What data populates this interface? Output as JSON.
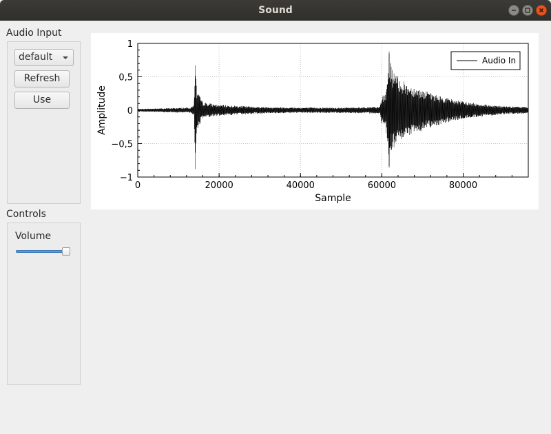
{
  "window": {
    "title": "Sound"
  },
  "audio_input": {
    "group_title": "Audio Input",
    "device_selected": "default",
    "refresh_label": "Refresh",
    "use_label": "Use"
  },
  "controls": {
    "group_title": "Controls",
    "volume_label": "Volume",
    "volume_fraction": 0.95
  },
  "colors": {
    "titlebar": "#3c3b37",
    "close_button": "#e9541e",
    "slider_fill": "#5e9ad6",
    "waveform": "#000000"
  },
  "chart_data": {
    "type": "line",
    "title": "",
    "xlabel": "Sample",
    "ylabel": "Amplitude",
    "xlim": [
      0,
      96000
    ],
    "ylim": [
      -1,
      1
    ],
    "x_ticks": [
      0,
      20000,
      40000,
      60000,
      80000
    ],
    "x_tick_labels": [
      "0",
      "20000",
      "40000",
      "60000",
      "80000"
    ],
    "y_ticks": [
      1,
      0.5,
      0,
      -0.5,
      -1
    ],
    "y_tick_labels": [
      "1",
      "0,5",
      "0",
      "−0,5",
      "−1"
    ],
    "grid": true,
    "legend": "top-right",
    "series": [
      {
        "name": "Audio In",
        "color": "#000000",
        "envelope": {
          "x": [
            0,
            13000,
            13800,
            14100,
            14500,
            16000,
            20000,
            30000,
            40000,
            50000,
            59500,
            60000,
            61000,
            61800,
            62300,
            63000,
            66000,
            70000,
            75000,
            80000,
            85000,
            90000,
            96000
          ],
          "max": [
            0.02,
            0.04,
            0.08,
            0.67,
            0.3,
            0.12,
            0.08,
            0.05,
            0.04,
            0.04,
            0.05,
            0.2,
            0.25,
            0.88,
            0.65,
            0.55,
            0.4,
            0.3,
            0.2,
            0.13,
            0.09,
            0.06,
            0.05
          ],
          "min": [
            -0.02,
            -0.04,
            -0.08,
            -0.88,
            -0.3,
            -0.12,
            -0.08,
            -0.05,
            -0.04,
            -0.04,
            -0.05,
            -0.2,
            -0.3,
            -0.86,
            -0.6,
            -0.55,
            -0.4,
            -0.3,
            -0.2,
            -0.13,
            -0.09,
            -0.06,
            -0.05
          ]
        }
      }
    ]
  }
}
